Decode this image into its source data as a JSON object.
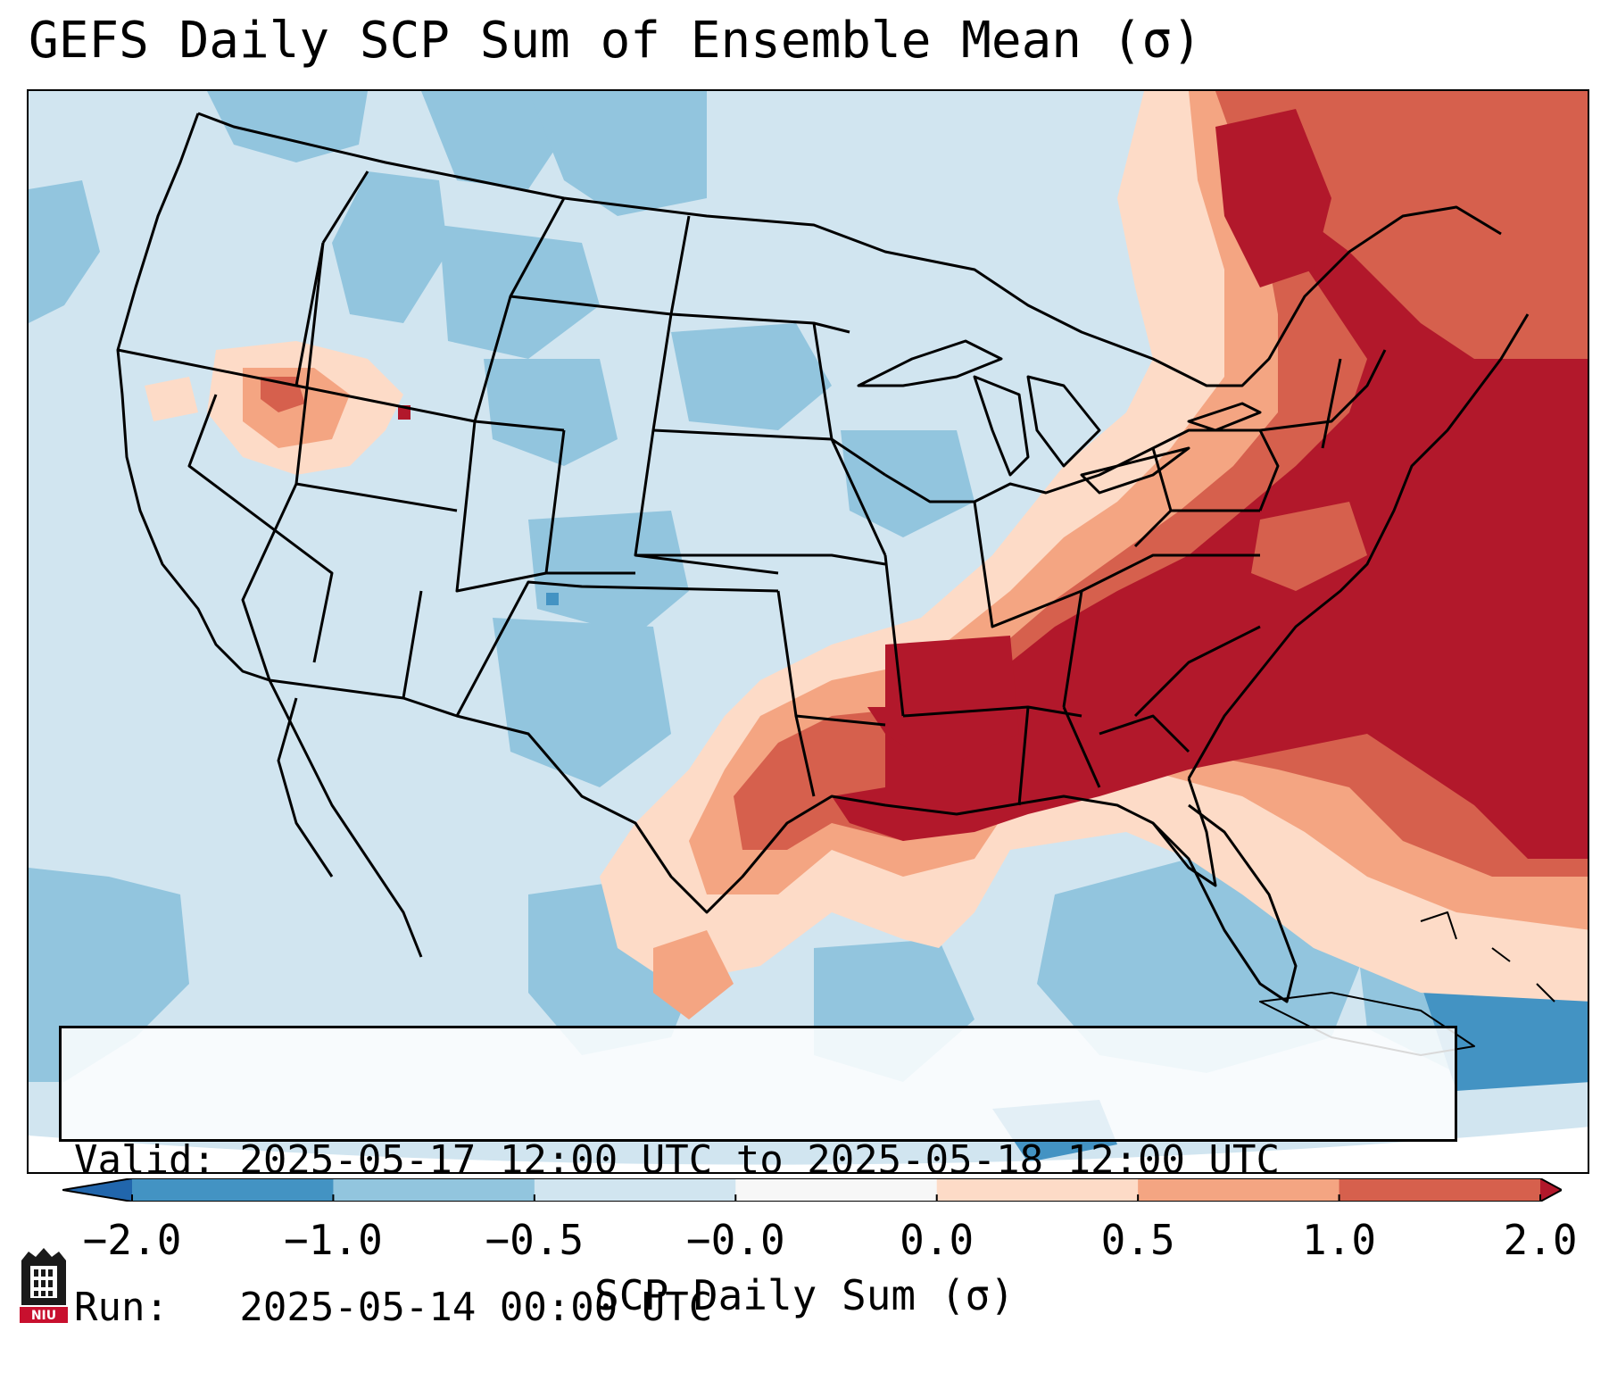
{
  "title": "GEFS Daily SCP Sum of Ensemble Mean (σ)",
  "info": {
    "valid_line": "Valid: 2025-05-17 12:00 UTC to 2025-05-18 12:00 UTC",
    "run_line": "Run:   2025-05-14 00:00 UTC"
  },
  "colorbar": {
    "label": "SCP Daily Sum (σ)",
    "ticks": [
      "−2.0",
      "−1.0",
      "−0.5",
      "−0.0",
      "0.0",
      "0.5",
      "1.0",
      "2.0"
    ],
    "bins": [
      {
        "range": "< -2.0",
        "color": "#2166ac"
      },
      {
        "range": "-2.0 to -1.0",
        "color": "#4393c3"
      },
      {
        "range": "-1.0 to -0.5",
        "color": "#92c5de"
      },
      {
        "range": "-0.5 to -0.0",
        "color": "#d1e5f0"
      },
      {
        "range": "-0.0 to 0.0",
        "color": "#f7f7f7"
      },
      {
        "range": "0.0 to 0.5",
        "color": "#fddbc7"
      },
      {
        "range": "0.5 to 1.0",
        "color": "#f4a582"
      },
      {
        "range": "1.0 to 2.0",
        "color": "#d6604d"
      },
      {
        "range": "> 2.0",
        "color": "#b2182b"
      }
    ]
  },
  "logo": {
    "text": "NIU",
    "icon": "niu-logo-icon"
  },
  "colors": {
    "ocean_base": "#d1e5f0",
    "border": "#000000"
  }
}
